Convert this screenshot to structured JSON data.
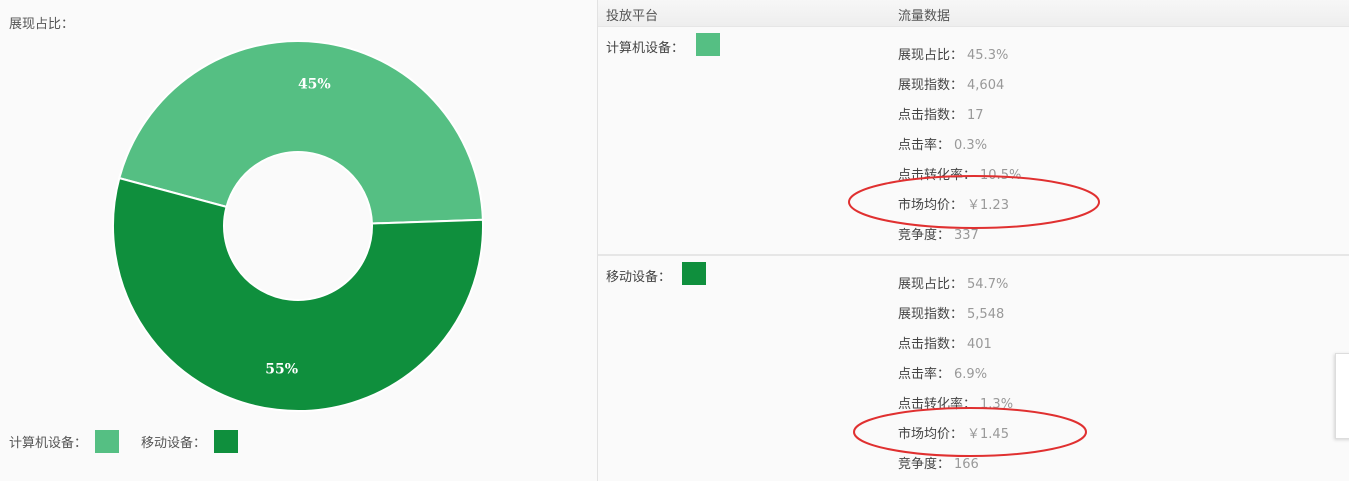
{
  "left": {
    "title": "展现占比：",
    "legend": [
      {
        "label": "计算机设备：",
        "color": "#55bf83"
      },
      {
        "label": "移动设备：",
        "color": "#0f8f3d"
      }
    ]
  },
  "chart_data": {
    "type": "pie",
    "donut": true,
    "categories": [
      "计算机设备",
      "移动设备"
    ],
    "values": [
      45.3,
      54.7
    ],
    "data_labels": [
      "45%",
      "55%"
    ],
    "colors": [
      "#55bf83",
      "#0f8f3d"
    ]
  },
  "table": {
    "headers": [
      "投放平台",
      "流量数据"
    ],
    "sections": [
      {
        "platform": "计算机设备：",
        "color": "#55bf83",
        "rows": [
          {
            "label": "展现占比：",
            "value": "45.3%"
          },
          {
            "label": "展现指数：",
            "value": "4,604"
          },
          {
            "label": "点击指数：",
            "value": "17"
          },
          {
            "label": "点击率：",
            "value": "0.3%"
          },
          {
            "label": "点击转化率：",
            "value": "10.5%"
          },
          {
            "label": "市场均价：",
            "value": "￥1.23"
          },
          {
            "label": "竞争度：",
            "value": "337"
          }
        ]
      },
      {
        "platform": "移动设备：",
        "color": "#0f8f3d",
        "rows": [
          {
            "label": "展现占比：",
            "value": "54.7%"
          },
          {
            "label": "展现指数：",
            "value": "5,548"
          },
          {
            "label": "点击指数：",
            "value": "401"
          },
          {
            "label": "点击率：",
            "value": "6.9%"
          },
          {
            "label": "点击转化率：",
            "value": "1.3%"
          },
          {
            "label": "市场均价：",
            "value": "￥1.45"
          },
          {
            "label": "竞争度：",
            "value": "166"
          }
        ]
      }
    ]
  },
  "annotation_color": "#e03030"
}
